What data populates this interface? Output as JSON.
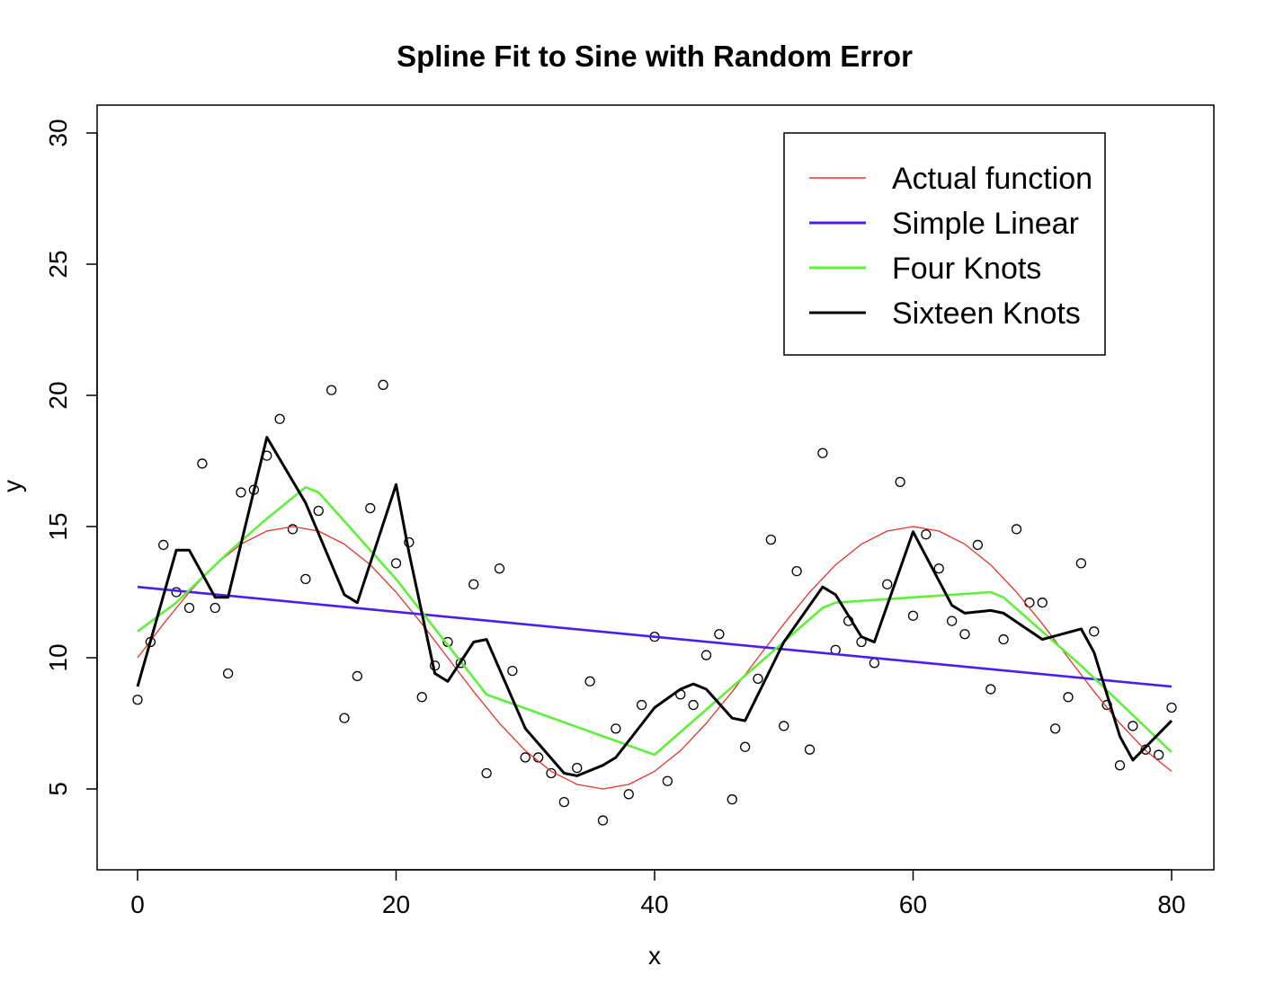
{
  "chart_data": {
    "type": "scatter",
    "title": "Spline Fit to Sine with Random Error",
    "xlabel": "x",
    "ylabel": "y",
    "xlim": [
      0,
      80
    ],
    "ylim": [
      2,
      31
    ],
    "x_ticks": [
      "0",
      "20",
      "40",
      "60",
      "80"
    ],
    "y_ticks": [
      "5",
      "10",
      "15",
      "20",
      "25",
      "30"
    ],
    "grid": false,
    "legend_position": "top-right",
    "points": {
      "x": [
        0,
        1,
        2,
        3,
        4,
        5,
        6,
        7,
        8,
        9,
        10,
        11,
        12,
        13,
        14,
        15,
        16,
        17,
        18,
        19,
        20,
        21,
        22,
        23,
        24,
        25,
        26,
        27,
        28,
        29,
        30,
        31,
        32,
        33,
        34,
        35,
        36,
        37,
        38,
        39,
        40,
        41,
        42,
        43,
        44,
        45,
        46,
        47,
        48,
        49,
        50,
        51,
        52,
        53,
        54,
        55,
        56,
        57,
        58,
        59,
        60,
        61,
        62,
        63,
        64,
        65,
        66,
        67,
        68,
        69,
        70,
        71,
        72,
        73,
        74,
        75,
        76,
        77,
        78,
        79,
        80
      ],
      "y": [
        8.4,
        10.6,
        14.3,
        12.5,
        11.9,
        17.4,
        11.9,
        9.4,
        16.3,
        16.4,
        17.7,
        19.1,
        14.9,
        13.0,
        15.6,
        20.2,
        7.7,
        9.3,
        15.7,
        20.4,
        13.6,
        14.4,
        8.5,
        9.7,
        10.6,
        9.8,
        12.8,
        5.6,
        13.4,
        9.5,
        6.2,
        6.2,
        5.6,
        4.5,
        5.8,
        9.1,
        3.8,
        7.3,
        4.8,
        8.2,
        10.8,
        5.3,
        8.6,
        8.2,
        10.1,
        10.9,
        4.6,
        6.6,
        9.2,
        14.5,
        7.4,
        13.3,
        6.5,
        17.8,
        10.3,
        11.4,
        10.6,
        9.8,
        12.8,
        16.7,
        11.6,
        14.7,
        13.4,
        11.4,
        10.9,
        14.3,
        8.8,
        10.7,
        14.9,
        12.1,
        12.1,
        7.3,
        8.5,
        13.6,
        11.0,
        8.2,
        5.9,
        7.4,
        6.5,
        6.3,
        8.1
      ]
    },
    "series": [
      {
        "name": "Actual function",
        "color": "#e8332a",
        "function": "10 + 5*sin(2*pi*x/48)",
        "x": [
          0,
          2,
          4,
          6,
          8,
          10,
          12,
          14,
          16,
          18,
          20,
          22,
          24,
          26,
          28,
          30,
          32,
          34,
          36,
          38,
          40,
          42,
          44,
          46,
          48,
          50,
          52,
          54,
          56,
          58,
          60,
          62,
          64,
          66,
          68,
          70,
          72,
          74,
          76,
          78,
          80
        ],
        "y": [
          10.0,
          11.29,
          12.5,
          13.54,
          14.33,
          14.83,
          15.0,
          14.83,
          14.33,
          13.54,
          12.5,
          11.29,
          10.0,
          8.71,
          7.5,
          6.46,
          5.67,
          5.17,
          5.0,
          5.17,
          5.67,
          6.46,
          7.5,
          8.71,
          10.0,
          11.29,
          12.5,
          13.54,
          14.33,
          14.83,
          15.0,
          14.83,
          14.33,
          13.54,
          12.5,
          11.29,
          10.0,
          8.71,
          7.5,
          6.46,
          5.67
        ]
      },
      {
        "name": "Simple Linear",
        "color": "#4a1ef0",
        "x": [
          0,
          80
        ],
        "y": [
          12.7,
          8.9
        ]
      },
      {
        "name": "Four Knots",
        "color": "#5ef03a",
        "x": [
          0,
          3,
          7,
          10,
          13,
          14,
          20,
          27,
          40,
          53,
          54,
          60,
          66,
          67,
          73,
          80
        ],
        "y": [
          11.0,
          12.1,
          14.0,
          15.3,
          16.5,
          16.3,
          13.0,
          8.6,
          6.3,
          11.9,
          12.1,
          12.3,
          12.5,
          12.3,
          9.7,
          6.4
        ]
      },
      {
        "name": "Sixteen Knots",
        "color": "#000000",
        "x": [
          0,
          3,
          4,
          6,
          7,
          10,
          13,
          16,
          17,
          20,
          21,
          23,
          24,
          26,
          27,
          30,
          33,
          34,
          36,
          37,
          40,
          42,
          43,
          44,
          46,
          47,
          50,
          53,
          54,
          56,
          57,
          60,
          63,
          64,
          66,
          67,
          70,
          73,
          74,
          76,
          77,
          80
        ],
        "y": [
          8.9,
          14.1,
          14.1,
          12.3,
          12.3,
          18.4,
          15.9,
          12.4,
          12.1,
          16.6,
          14.0,
          9.4,
          9.1,
          10.6,
          10.7,
          7.3,
          5.6,
          5.5,
          5.9,
          6.2,
          8.1,
          8.8,
          9.0,
          8.8,
          7.7,
          7.6,
          10.6,
          12.7,
          12.4,
          10.8,
          10.6,
          14.8,
          12.0,
          11.7,
          11.8,
          11.7,
          10.7,
          11.1,
          10.2,
          7.0,
          6.1,
          7.6
        ]
      }
    ]
  }
}
